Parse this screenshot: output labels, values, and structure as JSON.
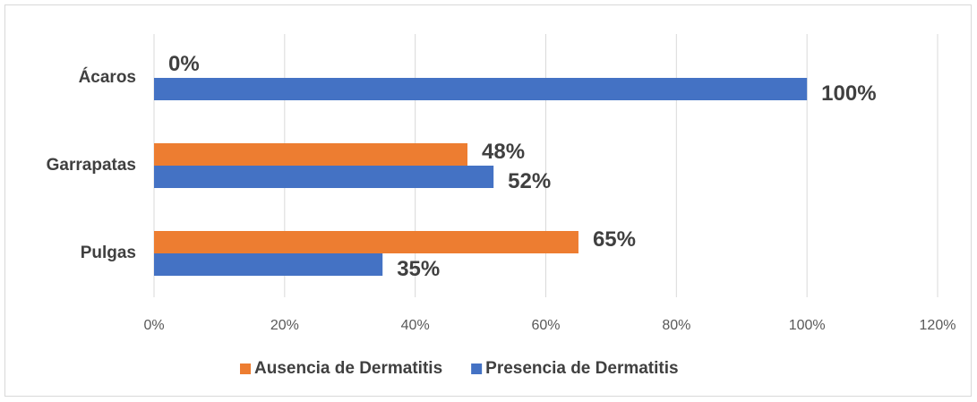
{
  "chart_data": {
    "type": "hbar",
    "categories": [
      "Ácaros",
      "Garrapatas",
      "Pulgas"
    ],
    "series": [
      {
        "name": "Ausencia de Dermatitis",
        "color": "#ed7d31",
        "values": [
          0,
          48,
          65
        ],
        "value_labels": [
          "0%",
          "48%",
          "65%"
        ]
      },
      {
        "name": "Presencia de Dermatitis",
        "color": "#4472c4",
        "values": [
          100,
          52,
          35
        ],
        "value_labels": [
          "100%",
          "52%",
          "35%"
        ]
      }
    ],
    "xlim": [
      0,
      120
    ],
    "xticks": [
      {
        "value": 0,
        "label": "0%"
      },
      {
        "value": 20,
        "label": "20%"
      },
      {
        "value": 40,
        "label": "40%"
      },
      {
        "value": 60,
        "label": "60%"
      },
      {
        "value": 80,
        "label": "80%"
      },
      {
        "value": 100,
        "label": "100%"
      },
      {
        "value": 120,
        "label": "120%"
      }
    ],
    "grid": true,
    "legend": "bottom"
  }
}
